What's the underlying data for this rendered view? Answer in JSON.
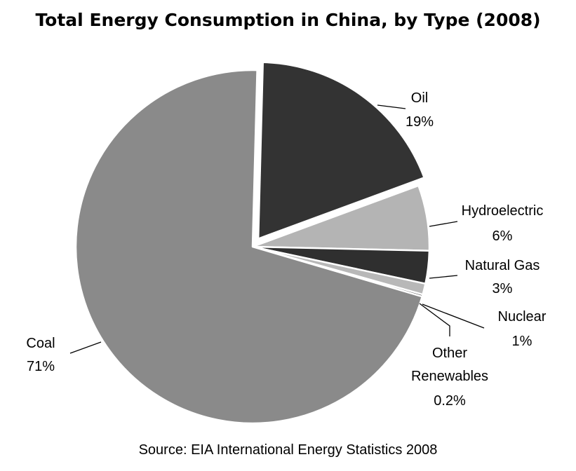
{
  "chart_data": {
    "type": "pie",
    "title": "Total Energy Consumption in China, by Type (2008)",
    "source": "Source: EIA International Energy Statistics 2008",
    "slices": [
      {
        "key": "oil",
        "label": "Oil",
        "value_label": "19%",
        "value": 19,
        "color": "#333333"
      },
      {
        "key": "hydroelectric",
        "label": "Hydroelectric",
        "value_label": "6%",
        "value": 6,
        "color": "#b4b4b4"
      },
      {
        "key": "natural-gas",
        "label": "Natural Gas",
        "value_label": "3%",
        "value": 3,
        "color": "#2f2f2f"
      },
      {
        "key": "nuclear",
        "label": "Nuclear",
        "value_label": "1%",
        "value": 1,
        "color": "#b8b8b8"
      },
      {
        "key": "other-renewables",
        "label": "Other Renewables",
        "value_label": "0.2%",
        "value": 0.2,
        "color": "#3a3a3a"
      },
      {
        "key": "coal",
        "label": "Coal",
        "value_label": "71%",
        "value": 71,
        "color": "#8a8a8a"
      }
    ]
  }
}
